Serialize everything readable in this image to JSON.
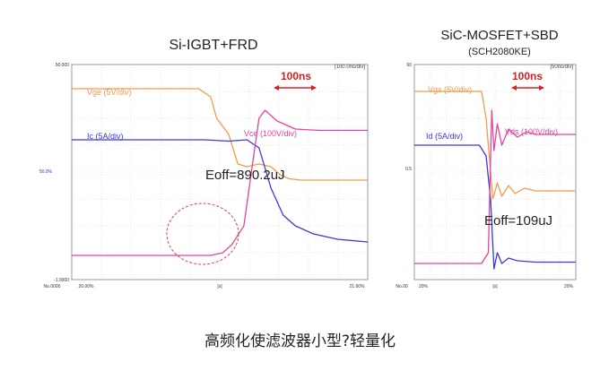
{
  "caption": "高频化使滤波器小型?轻量化",
  "chart_data": [
    {
      "type": "line",
      "title": "Si-IGBT+FRD",
      "screen_label": "[100.0ns/div]",
      "scale_marker": "100ns",
      "annotation": "Eoff=890.2uJ",
      "y_tick_labels": [
        "50.000",
        "50.0%",
        "-1.0000"
      ],
      "x_tick_labels": [
        "No.0000",
        "20.00%",
        "[s]",
        "21.60%"
      ],
      "xlim": [
        -0.9,
        4.0
      ],
      "x_unit": "div (100ns/div)",
      "series": [
        {
          "name": "Vge (5V/div)",
          "color": "#f39a4c",
          "x": [
            -0.9,
            1.2,
            1.4,
            1.5,
            1.7,
            1.85,
            2.0,
            2.2,
            2.4,
            2.55,
            2.7,
            2.9,
            4.0
          ],
          "y": [
            3.1,
            3.1,
            2.8,
            2.0,
            1.4,
            0.3,
            0.2,
            0.3,
            0.2,
            -0.1,
            -0.25,
            -0.3,
            -0.3
          ]
        },
        {
          "name": "Ic (5A/div)",
          "color": "#3a3ad8",
          "x": [
            -0.9,
            1.3,
            1.7,
            2.0,
            2.2,
            2.4,
            2.6,
            2.8,
            3.1,
            3.5,
            4.0
          ],
          "y": [
            1.2,
            1.2,
            1.15,
            1.2,
            0.9,
            -0.6,
            -1.6,
            -2.0,
            -2.3,
            -2.5,
            -2.6
          ]
        },
        {
          "name": "Vce (100V/div)",
          "color": "#e4449c",
          "x": [
            -0.9,
            1.4,
            1.6,
            1.75,
            1.95,
            2.1,
            2.2,
            2.3,
            2.5,
            2.8,
            3.2,
            4.0
          ],
          "y": [
            -3.1,
            -3.1,
            -3.0,
            -2.7,
            -2.0,
            0.4,
            2.0,
            2.3,
            1.9,
            1.6,
            1.55,
            1.55
          ]
        }
      ]
    },
    {
      "type": "line",
      "title": "SiC-MOSFET+SBD",
      "subtitle": "(SCH2080KE)",
      "screen_label": "[50ns/div]",
      "scale_marker": "100ns",
      "annotation": "Eoff=109uJ",
      "y_tick_labels": [
        "60",
        "0.5"
      ],
      "x_tick_labels": [
        "No.00",
        "20%",
        "[s]",
        "20%"
      ],
      "xlim": [
        -3.4,
        3.8
      ],
      "x_unit": "div (50ns/div)",
      "series": [
        {
          "name": "Vgs (5V/div)",
          "color": "#f39a4c",
          "x": [
            -3.4,
            -0.4,
            -0.2,
            0.0,
            0.1,
            0.3,
            0.5,
            0.8,
            1.1,
            1.5,
            2.0,
            3.8
          ],
          "y": [
            3.0,
            3.0,
            2.0,
            0.0,
            -1.0,
            -0.4,
            -0.9,
            -0.5,
            -0.8,
            -0.6,
            -0.7,
            -0.7
          ]
        },
        {
          "name": "Id (5A/div)",
          "color": "#3a3ad8",
          "x": [
            -3.4,
            -0.5,
            -0.2,
            0.0,
            0.15,
            0.3,
            0.5,
            0.8,
            1.2,
            2.0,
            3.8
          ],
          "y": [
            1.0,
            1.0,
            0.6,
            -1.0,
            -3.6,
            -3.0,
            -3.4,
            -3.2,
            -3.3,
            -3.35,
            -3.35
          ]
        },
        {
          "name": "Vds (100V/div)",
          "color": "#e4449c",
          "x": [
            -3.4,
            -0.4,
            -0.1,
            0.05,
            0.15,
            0.3,
            0.5,
            0.8,
            1.2,
            1.6,
            2.0,
            3.8
          ],
          "y": [
            -3.4,
            -3.4,
            -3.0,
            2.3,
            0.8,
            1.8,
            1.0,
            1.6,
            1.3,
            1.5,
            1.4,
            1.4
          ]
        }
      ]
    }
  ]
}
